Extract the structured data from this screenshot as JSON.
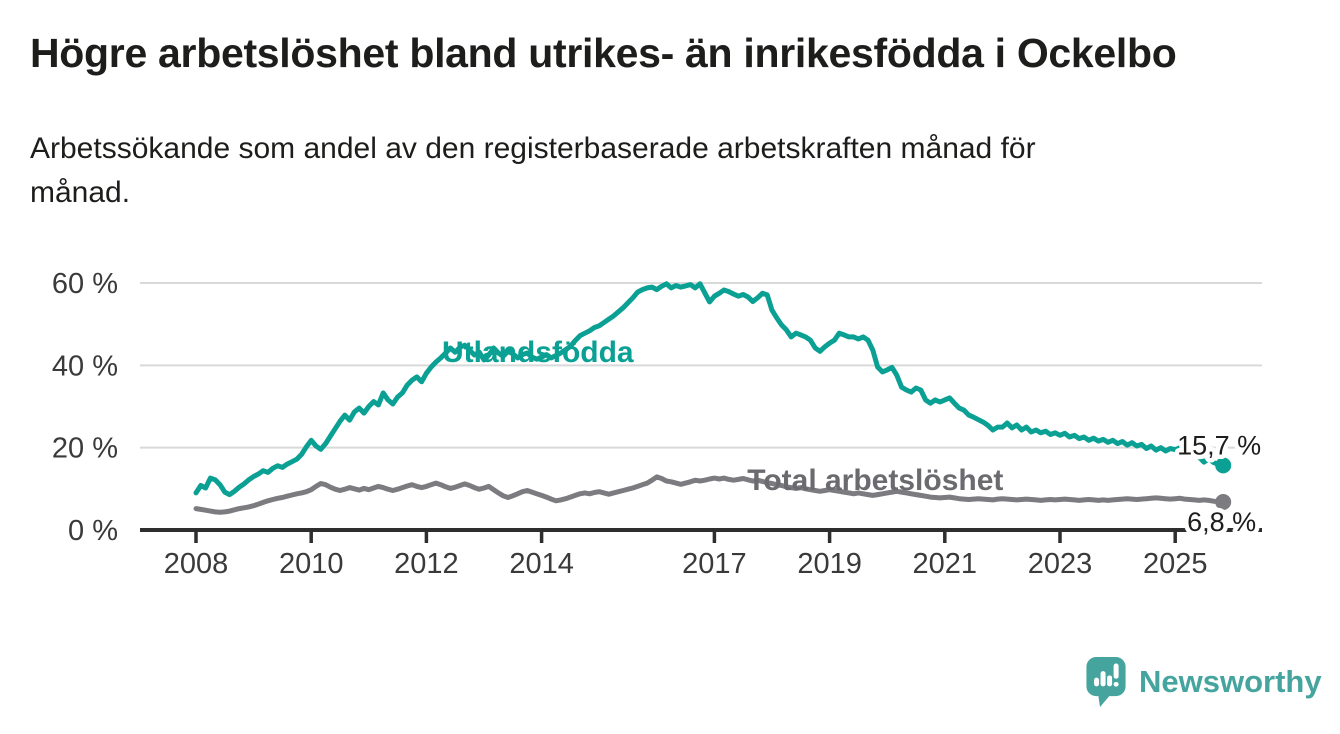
{
  "header": {
    "title": "Högre arbetslöshet bland utrikes- än inrikesfödda i Ockelbo",
    "subtitle_lines": [
      "Arbetssökande som andel av den registerbaserade arbetskraften månad för",
      "månad."
    ]
  },
  "branding": {
    "logo_text": "Newsworthy",
    "logo_icon": "speech-bubble-bar-chart-icon",
    "logo_color": "#45a49d"
  },
  "colors": {
    "accent_teal": "#0aa093",
    "total_gray": "#7b7b80",
    "total_label_gray": "#6a6a6f",
    "grid": "#d9d9d9",
    "axis": "#2e2e2e",
    "tick_text": "#3a3a3a",
    "annotation_text": "#1d1d1b",
    "background": "#ffffff"
  },
  "chart_data": {
    "type": "line",
    "unit": "%",
    "x_start_month": "2008-01",
    "x_end_month": "2025-11",
    "points_per_year": 12,
    "ylim": [
      0,
      62
    ],
    "grid": "horizontal",
    "y_ticks": [
      {
        "value": 0,
        "label": "0 %"
      },
      {
        "value": 20,
        "label": "20 %"
      },
      {
        "value": 40,
        "label": "40 %"
      },
      {
        "value": 60,
        "label": "60 %"
      }
    ],
    "x_ticks": [
      {
        "year": 2008,
        "label": "2008"
      },
      {
        "year": 2010,
        "label": "2010"
      },
      {
        "year": 2012,
        "label": "2012"
      },
      {
        "year": 2014,
        "label": "2014"
      },
      {
        "year": 2017,
        "label": "2017"
      },
      {
        "year": 2019,
        "label": "2019"
      },
      {
        "year": 2021,
        "label": "2021"
      },
      {
        "year": 2023,
        "label": "2023"
      },
      {
        "year": 2025,
        "label": "2025"
      }
    ],
    "series": [
      {
        "name": "Utlandsfödda",
        "color": "#0aa093",
        "label_color": "#0aa093",
        "end_label": "15,7 %",
        "end_value": 15.7,
        "inline_label": {
          "year": 2012.27,
          "value": 40.8
        },
        "values": [
          9.0,
          10.8,
          10.2,
          12.6,
          12.2,
          11.0,
          9.2,
          8.6,
          9.4,
          10.4,
          11.2,
          12.2,
          13.0,
          13.6,
          14.4,
          14.0,
          15.0,
          15.6,
          15.2,
          16.0,
          16.6,
          17.2,
          18.4,
          20.2,
          21.8,
          20.4,
          19.6,
          21.0,
          22.8,
          24.6,
          26.4,
          27.9,
          26.7,
          28.7,
          29.6,
          28.4,
          30.0,
          31.2,
          30.4,
          33.3,
          31.6,
          30.6,
          32.3,
          33.3,
          35.2,
          36.4,
          37.2,
          36.0,
          38.1,
          39.6,
          40.8,
          41.8,
          43.0,
          44.2,
          43.2,
          44.4,
          44.9,
          43.7,
          42.5,
          43.2,
          41.3,
          42.5,
          44.2,
          43.0,
          42.2,
          43.4,
          42.8,
          41.8,
          42.6,
          43.0,
          42.0,
          41.5,
          42.0,
          42.6,
          41.8,
          42.4,
          43.0,
          43.8,
          44.6,
          46.0,
          47.2,
          47.8,
          48.4,
          49.2,
          49.6,
          50.4,
          51.2,
          52.0,
          53.0,
          54.0,
          55.2,
          56.4,
          57.8,
          58.4,
          58.8,
          59.0,
          58.4,
          59.2,
          59.8,
          58.8,
          59.4,
          59.0,
          59.3,
          59.6,
          58.8,
          59.8,
          57.6,
          55.4,
          56.8,
          57.5,
          58.3,
          57.9,
          57.3,
          56.8,
          57.2,
          56.6,
          55.5,
          56.4,
          57.5,
          57.1,
          53.4,
          51.5,
          49.8,
          48.6,
          46.9,
          47.8,
          47.4,
          46.9,
          46.1,
          44.2,
          43.4,
          44.5,
          45.4,
          46.1,
          47.8,
          47.4,
          46.9,
          46.9,
          46.4,
          46.9,
          46.1,
          43.7,
          39.6,
          38.4,
          38.9,
          39.5,
          37.6,
          34.7,
          34.0,
          33.5,
          34.5,
          34.0,
          31.6,
          30.8,
          31.6,
          31.1,
          31.6,
          32.1,
          30.8,
          29.6,
          29.1,
          27.9,
          27.4,
          26.8,
          26.2,
          25.4,
          24.3,
          25.0,
          25.0,
          26.0,
          24.8,
          25.5,
          24.3,
          25.0,
          23.8,
          24.3,
          23.6,
          24.0,
          23.2,
          23.6,
          23.0,
          23.5,
          22.6,
          23.0,
          22.2,
          22.6,
          21.8,
          22.3,
          21.6,
          22.0,
          21.3,
          21.8,
          21.0,
          21.5,
          20.6,
          21.2,
          20.4,
          20.8,
          19.8,
          20.4,
          19.4,
          20.0,
          19.2,
          19.8,
          19.5,
          20.0,
          19.0,
          19.6,
          18.5,
          17.7,
          16.5,
          17.3,
          16.4,
          15.9,
          15.7
        ]
      },
      {
        "name": "Total arbetslöshet",
        "color": "#7b7b80",
        "label_color": "#6a6a6f",
        "end_label": "6,8 %",
        "end_value": 6.8,
        "inline_label": {
          "year": 2017.57,
          "value": 9.7
        },
        "values": [
          5.2,
          5.0,
          4.8,
          4.6,
          4.4,
          4.3,
          4.4,
          4.6,
          4.9,
          5.2,
          5.4,
          5.6,
          5.9,
          6.3,
          6.7,
          7.1,
          7.4,
          7.7,
          7.9,
          8.2,
          8.5,
          8.8,
          9.0,
          9.3,
          9.8,
          10.6,
          11.3,
          11.0,
          10.4,
          9.9,
          9.6,
          9.9,
          10.3,
          10.0,
          9.7,
          10.1,
          9.8,
          10.2,
          10.6,
          10.3,
          9.9,
          9.6,
          9.9,
          10.3,
          10.7,
          11.0,
          10.6,
          10.3,
          10.6,
          11.0,
          11.4,
          11.0,
          10.5,
          10.1,
          10.4,
          10.8,
          11.2,
          10.8,
          10.3,
          9.9,
          10.2,
          10.6,
          9.8,
          9.0,
          8.3,
          7.9,
          8.3,
          8.8,
          9.3,
          9.6,
          9.2,
          8.8,
          8.4,
          8.0,
          7.5,
          7.1,
          7.3,
          7.6,
          8.0,
          8.4,
          8.8,
          9.0,
          8.8,
          9.1,
          9.3,
          9.0,
          8.7,
          9.0,
          9.3,
          9.6,
          9.9,
          10.2,
          10.6,
          11.0,
          11.4,
          12.1,
          12.9,
          12.5,
          11.9,
          11.7,
          11.4,
          11.1,
          11.4,
          11.7,
          12.1,
          11.9,
          12.1,
          12.4,
          12.6,
          12.4,
          12.6,
          12.3,
          12.1,
          12.3,
          12.5,
          12.2,
          11.9,
          12.1,
          11.8,
          11.5,
          11.3,
          11.0,
          10.8,
          10.5,
          10.3,
          10.1,
          10.3,
          10.0,
          9.8,
          9.6,
          9.4,
          9.6,
          9.8,
          9.6,
          9.4,
          9.2,
          9.0,
          8.8,
          9.0,
          8.8,
          8.6,
          8.4,
          8.6,
          8.8,
          9.0,
          9.2,
          9.4,
          9.2,
          9.0,
          8.8,
          8.6,
          8.4,
          8.2,
          8.0,
          7.9,
          7.8,
          7.9,
          8.0,
          7.8,
          7.6,
          7.5,
          7.4,
          7.5,
          7.6,
          7.5,
          7.4,
          7.3,
          7.5,
          7.6,
          7.5,
          7.4,
          7.3,
          7.4,
          7.5,
          7.4,
          7.3,
          7.2,
          7.3,
          7.4,
          7.3,
          7.4,
          7.5,
          7.4,
          7.3,
          7.2,
          7.3,
          7.4,
          7.3,
          7.2,
          7.3,
          7.2,
          7.3,
          7.4,
          7.5,
          7.6,
          7.5,
          7.4,
          7.5,
          7.6,
          7.7,
          7.8,
          7.7,
          7.6,
          7.5,
          7.6,
          7.7,
          7.5,
          7.4,
          7.3,
          7.2,
          7.3,
          7.2,
          7.0,
          6.9,
          6.8
        ]
      }
    ]
  }
}
